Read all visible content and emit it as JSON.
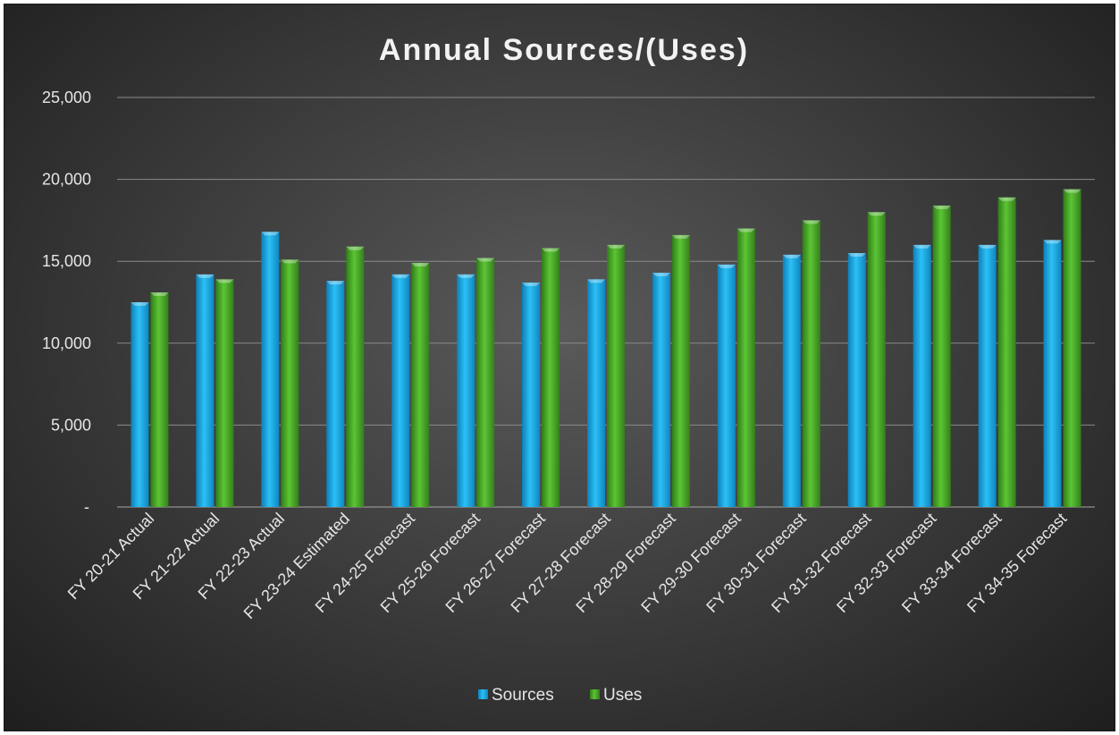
{
  "chart_data": {
    "type": "bar",
    "title": "Annual Sources/(Uses)",
    "xlabel": "",
    "ylabel": "",
    "ylim": [
      0,
      25000
    ],
    "yticks": [
      0,
      5000,
      10000,
      15000,
      20000,
      25000
    ],
    "ytick_labels": [
      "-",
      "5,000",
      "10,000",
      "15,000",
      "20,000",
      "25,000"
    ],
    "grid": true,
    "legend_position": "bottom",
    "categories": [
      "FY 20-21 Actual",
      "FY 21-22 Actual",
      "FY 22-23 Actual",
      "FY 23-24 Estimated",
      "FY 24-25 Forecast",
      "FY 25-26 Forecast",
      "FY 26-27 Forecast",
      "FY 27-28 Forecast",
      "FY 28-29 Forecast",
      "FY 29-30 Forecast",
      "FY 30-31 Forecast",
      "FY 31-32 Forecast",
      "FY 32-33 Forecast",
      "FY 33-34 Forecast",
      "FY 34-35 Forecast"
    ],
    "series": [
      {
        "name": "Sources",
        "color": "#1aa7e6",
        "values": [
          12500,
          14200,
          16800,
          13800,
          14200,
          14200,
          13700,
          13900,
          14300,
          14800,
          15400,
          15500,
          16000,
          16000,
          16300
        ]
      },
      {
        "name": "Uses",
        "color": "#4aa82a",
        "values": [
          13100,
          13900,
          15100,
          15900,
          14900,
          15200,
          15800,
          16000,
          16600,
          17000,
          17500,
          18000,
          18400,
          18900,
          19400
        ]
      }
    ]
  }
}
